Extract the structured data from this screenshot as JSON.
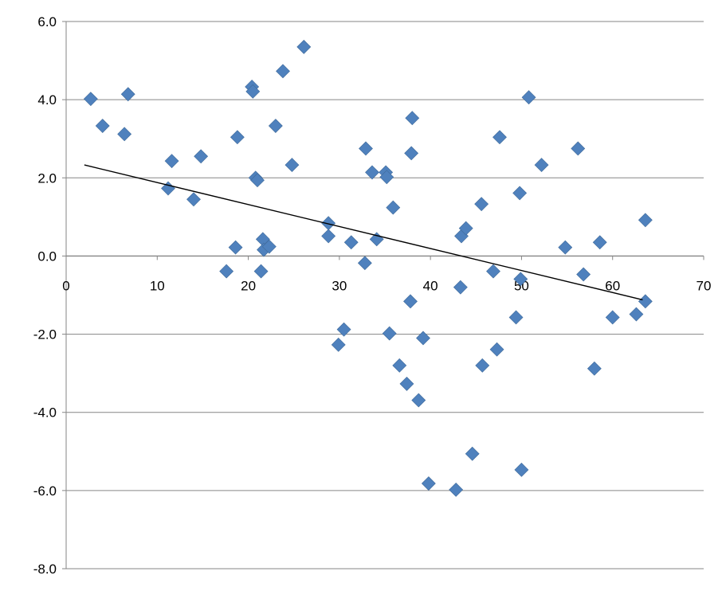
{
  "chart_data": {
    "type": "scatter",
    "title": "",
    "xlabel": "",
    "ylabel": "",
    "xlim": [
      0,
      70
    ],
    "ylim": [
      -8,
      6
    ],
    "x_ticks": [
      "0",
      "10",
      "20",
      "30",
      "40",
      "50",
      "60",
      "70"
    ],
    "y_ticks": [
      "6.0",
      "4.0",
      "2.0",
      "0.0",
      "-2.0",
      "-4.0",
      "-6.0",
      "-8.0"
    ],
    "grid": "horizontal",
    "marker": "diamond",
    "marker_color": "#4f81bd",
    "gridline_color": "#868686",
    "trendline": {
      "x": [
        2.0,
        63.3
      ],
      "y": [
        2.33,
        -1.12
      ],
      "color": "#000000"
    },
    "points": [
      {
        "x": 2.7,
        "y": 4.02
      },
      {
        "x": 4.0,
        "y": 3.33
      },
      {
        "x": 6.4,
        "y": 3.12
      },
      {
        "x": 6.8,
        "y": 4.14
      },
      {
        "x": 11.2,
        "y": 1.73
      },
      {
        "x": 11.6,
        "y": 2.43
      },
      {
        "x": 14.0,
        "y": 1.45
      },
      {
        "x": 14.8,
        "y": 2.55
      },
      {
        "x": 17.6,
        "y": -0.39
      },
      {
        "x": 18.6,
        "y": 0.22
      },
      {
        "x": 18.8,
        "y": 3.04
      },
      {
        "x": 20.4,
        "y": 4.33
      },
      {
        "x": 20.5,
        "y": 4.21
      },
      {
        "x": 20.8,
        "y": 2.0
      },
      {
        "x": 21.0,
        "y": 1.94
      },
      {
        "x": 21.4,
        "y": -0.39
      },
      {
        "x": 21.6,
        "y": 0.43
      },
      {
        "x": 21.7,
        "y": 0.16
      },
      {
        "x": 22.3,
        "y": 0.24
      },
      {
        "x": 23.0,
        "y": 3.33
      },
      {
        "x": 23.8,
        "y": 4.73
      },
      {
        "x": 24.8,
        "y": 2.33
      },
      {
        "x": 26.1,
        "y": 5.35
      },
      {
        "x": 28.8,
        "y": 0.84
      },
      {
        "x": 28.8,
        "y": 0.51
      },
      {
        "x": 29.9,
        "y": -2.27
      },
      {
        "x": 30.5,
        "y": -1.88
      },
      {
        "x": 31.3,
        "y": 0.35
      },
      {
        "x": 32.8,
        "y": -0.18
      },
      {
        "x": 32.9,
        "y": 2.75
      },
      {
        "x": 33.6,
        "y": 2.14
      },
      {
        "x": 34.1,
        "y": 0.43
      },
      {
        "x": 35.1,
        "y": 2.14
      },
      {
        "x": 35.2,
        "y": 2.02
      },
      {
        "x": 35.5,
        "y": -1.98
      },
      {
        "x": 35.9,
        "y": 1.24
      },
      {
        "x": 36.6,
        "y": -2.8
      },
      {
        "x": 37.4,
        "y": -3.27
      },
      {
        "x": 37.8,
        "y": -1.16
      },
      {
        "x": 37.9,
        "y": 2.63
      },
      {
        "x": 38.0,
        "y": 3.53
      },
      {
        "x": 38.7,
        "y": -3.69
      },
      {
        "x": 39.2,
        "y": -2.1
      },
      {
        "x": 39.8,
        "y": -5.82
      },
      {
        "x": 42.8,
        "y": -5.98
      },
      {
        "x": 43.3,
        "y": -0.8
      },
      {
        "x": 43.4,
        "y": 0.51
      },
      {
        "x": 43.9,
        "y": 0.71
      },
      {
        "x": 44.6,
        "y": -5.06
      },
      {
        "x": 45.6,
        "y": 1.33
      },
      {
        "x": 45.7,
        "y": -2.8
      },
      {
        "x": 46.9,
        "y": -0.39
      },
      {
        "x": 47.3,
        "y": -2.39
      },
      {
        "x": 47.6,
        "y": 3.04
      },
      {
        "x": 49.4,
        "y": -1.57
      },
      {
        "x": 49.8,
        "y": 1.61
      },
      {
        "x": 49.9,
        "y": -0.59
      },
      {
        "x": 50.0,
        "y": -5.47
      },
      {
        "x": 50.8,
        "y": 4.06
      },
      {
        "x": 52.2,
        "y": 2.33
      },
      {
        "x": 54.8,
        "y": 0.22
      },
      {
        "x": 56.2,
        "y": 2.75
      },
      {
        "x": 56.8,
        "y": -0.47
      },
      {
        "x": 58.0,
        "y": -2.88
      },
      {
        "x": 58.6,
        "y": 0.35
      },
      {
        "x": 60.0,
        "y": -1.57
      },
      {
        "x": 62.6,
        "y": -1.49
      },
      {
        "x": 63.6,
        "y": 0.92
      },
      {
        "x": 63.6,
        "y": -1.16
      }
    ]
  }
}
